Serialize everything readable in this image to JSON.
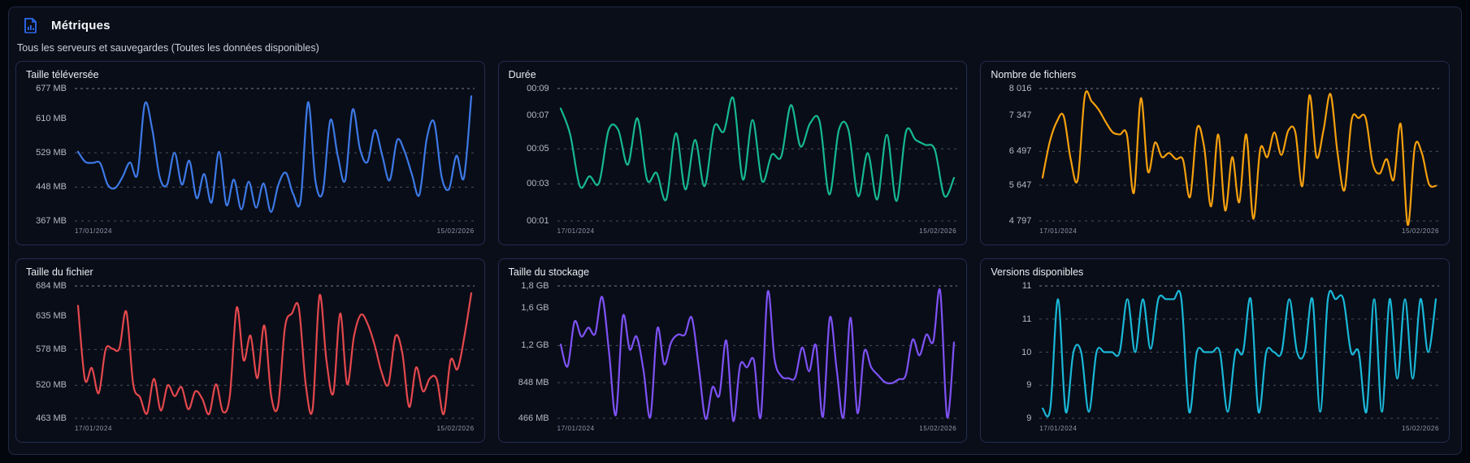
{
  "panel": {
    "title": "Métriques",
    "subtitle": "Tous les serveurs et sauvegardes (Toutes les données disponibles)",
    "icon": "file-chart-icon",
    "icon_color": "#2f6af0",
    "grid_color": "#8a92a2"
  },
  "chart_data": [
    {
      "type": "line",
      "title": "Taille téléversée",
      "unit": "MB",
      "color": "#3d79e6",
      "x_start": "17/01/2024",
      "x_end": "15/02/2026",
      "ylim_top": 677,
      "ylim_bottom": 367,
      "yticks": [
        {
          "label": "677 MB",
          "pos": 0.0,
          "grid": true
        },
        {
          "label": "610 MB",
          "pos": 0.225,
          "grid": false
        },
        {
          "label": "529 MB",
          "pos": 0.485,
          "grid": true
        },
        {
          "label": "448 MB",
          "pos": 0.745,
          "grid": true
        },
        {
          "label": "367 MB",
          "pos": 1.0,
          "grid": true
        }
      ],
      "values": [
        529,
        505,
        503,
        502,
        452,
        444,
        470,
        504,
        476,
        641,
        582,
        470,
        452,
        527,
        452,
        508,
        420,
        477,
        410,
        529,
        404,
        464,
        394,
        459,
        398,
        455,
        388,
        452,
        480,
        430,
        415,
        645,
        460,
        436,
        603,
        520,
        462,
        628,
        535,
        505,
        580,
        520,
        462,
        556,
        530,
        476,
        428,
        560,
        598,
        470,
        442,
        520,
        468,
        659
      ]
    },
    {
      "type": "line",
      "title": "Durée",
      "unit": "mm:ss",
      "color": "#16b893",
      "x_start": "17/01/2024",
      "x_end": "15/02/2026",
      "ylim_top": 9,
      "ylim_bottom": 1,
      "yticks": [
        {
          "label": "00:09",
          "pos": 0.0,
          "grid": true
        },
        {
          "label": "00:07",
          "pos": 0.2,
          "grid": false
        },
        {
          "label": "00:05",
          "pos": 0.455,
          "grid": true
        },
        {
          "label": "00:03",
          "pos": 0.72,
          "grid": true
        },
        {
          "label": "00:01",
          "pos": 1.0,
          "grid": true
        }
      ],
      "values": [
        7.8,
        6.2,
        3.1,
        3.7,
        3.3,
        6.5,
        6.5,
        4.4,
        7.2,
        3.5,
        3.9,
        2.3,
        6.3,
        2.9,
        5.9,
        3.1,
        6.7,
        6.4,
        8.4,
        3.5,
        7.1,
        3.4,
        5.0,
        4.9,
        8.0,
        5.5,
        6.9,
        7.0,
        2.6,
        6.5,
        6.5,
        2.5,
        5.1,
        2.3,
        6.2,
        2.2,
        6.4,
        5.9,
        5.6,
        5.3,
        2.5,
        3.6
      ]
    },
    {
      "type": "line",
      "title": "Nombre de fichiers",
      "unit": "fichiers",
      "color": "#f5a00d",
      "x_start": "17/01/2024",
      "x_end": "15/02/2026",
      "ylim_top": 8016,
      "ylim_bottom": 4797,
      "yticks": [
        {
          "label": "8 016",
          "pos": 0.0,
          "grid": true
        },
        {
          "label": "7 347",
          "pos": 0.2,
          "grid": false
        },
        {
          "label": "6 497",
          "pos": 0.475,
          "grid": true
        },
        {
          "label": "5 647",
          "pos": 0.73,
          "grid": true
        },
        {
          "label": "4 797",
          "pos": 1.0,
          "grid": true
        }
      ],
      "values": [
        5850,
        6700,
        7200,
        7350,
        6300,
        5800,
        7830,
        7700,
        7500,
        7200,
        6950,
        6900,
        6900,
        5480,
        7780,
        6000,
        6700,
        6350,
        6450,
        6300,
        6280,
        5380,
        7050,
        6600,
        5150,
        6900,
        5050,
        6350,
        5250,
        6900,
        4850,
        6550,
        6350,
        6950,
        6400,
        7000,
        6950,
        5650,
        7850,
        6350,
        7000,
        7880,
        6450,
        5550,
        7250,
        7300,
        7300,
        6200,
        5950,
        6300,
        5800,
        7150,
        4700,
        6600,
        6450,
        5700,
        5650
      ]
    },
    {
      "type": "line",
      "title": "Taille du fichier",
      "unit": "MB",
      "color": "#e4484d",
      "x_start": "17/01/2024",
      "x_end": "15/02/2026",
      "ylim_top": 684,
      "ylim_bottom": 463,
      "yticks": [
        {
          "label": "684 MB",
          "pos": 0.0,
          "grid": true
        },
        {
          "label": "635 MB",
          "pos": 0.225,
          "grid": false
        },
        {
          "label": "578 MB",
          "pos": 0.48,
          "grid": true
        },
        {
          "label": "520 MB",
          "pos": 0.75,
          "grid": true
        },
        {
          "label": "463 MB",
          "pos": 1.0,
          "grid": true
        }
      ],
      "values": [
        651,
        528,
        547,
        505,
        578,
        579,
        580,
        641,
        520,
        498,
        471,
        529,
        476,
        518,
        500,
        515,
        478,
        508,
        496,
        470,
        520,
        474,
        500,
        648,
        560,
        601,
        530,
        618,
        500,
        484,
        615,
        638,
        648,
        520,
        478,
        668,
        560,
        505,
        638,
        520,
        600,
        636,
        620,
        585,
        540,
        520,
        600,
        572,
        482,
        548,
        508,
        530,
        528,
        470,
        560,
        545,
        600,
        672
      ]
    },
    {
      "type": "line",
      "title": "Taille du stockage",
      "unit": "MB",
      "color": "#7e52f5",
      "x_start": "17/01/2024",
      "x_end": "15/02/2026",
      "ylim_top": 1800,
      "ylim_bottom": 466,
      "yticks": [
        {
          "label": "1,8 GB",
          "pos": 0.0,
          "grid": true
        },
        {
          "label": "1,6 GB",
          "pos": 0.165,
          "grid": false
        },
        {
          "label": "1,2 GB",
          "pos": 0.45,
          "grid": true
        },
        {
          "label": "848 MB",
          "pos": 0.73,
          "grid": true
        },
        {
          "label": "466 MB",
          "pos": 1.0,
          "grid": true
        }
      ],
      "values": [
        1210,
        990,
        1440,
        1290,
        1380,
        1320,
        1690,
        1140,
        500,
        1490,
        1160,
        1290,
        950,
        480,
        1370,
        1010,
        1230,
        1310,
        1310,
        1480,
        990,
        460,
        780,
        700,
        1250,
        440,
        1000,
        980,
        1050,
        480,
        1740,
        1060,
        890,
        870,
        880,
        1180,
        940,
        1200,
        480,
        1480,
        960,
        480,
        1480,
        520,
        1140,
        980,
        900,
        830,
        820,
        860,
        900,
        1260,
        1100,
        1310,
        1240,
        1750,
        480,
        1230
      ]
    },
    {
      "type": "line",
      "title": "Versions disponibles",
      "unit": "versions",
      "color": "#1ab8d8",
      "x_start": "17/01/2024",
      "x_end": "15/02/2026",
      "ylim_top": 11,
      "ylim_bottom": 9,
      "yticks": [
        {
          "label": "11",
          "pos": 0.0,
          "grid": true
        },
        {
          "label": "11",
          "pos": 0.25,
          "grid": true
        },
        {
          "label": "10",
          "pos": 0.5,
          "grid": true
        },
        {
          "label": "9",
          "pos": 0.75,
          "grid": true
        },
        {
          "label": "9",
          "pos": 1.0,
          "grid": true
        }
      ],
      "values": [
        9.15,
        9.15,
        10.8,
        9.1,
        10,
        10,
        9.1,
        10,
        10,
        10,
        10,
        10.8,
        10,
        10.8,
        10.05,
        10.8,
        10.8,
        10.8,
        10.8,
        9.1,
        10,
        10,
        10,
        10,
        9.1,
        10,
        10,
        10.8,
        9.1,
        10,
        10,
        10,
        10.8,
        10,
        10,
        10.8,
        9.1,
        10.8,
        10.8,
        10.8,
        10,
        10,
        9.1,
        10.8,
        9.1,
        10.8,
        9.6,
        10.8,
        9.6,
        10.8,
        10,
        10.8
      ]
    }
  ]
}
